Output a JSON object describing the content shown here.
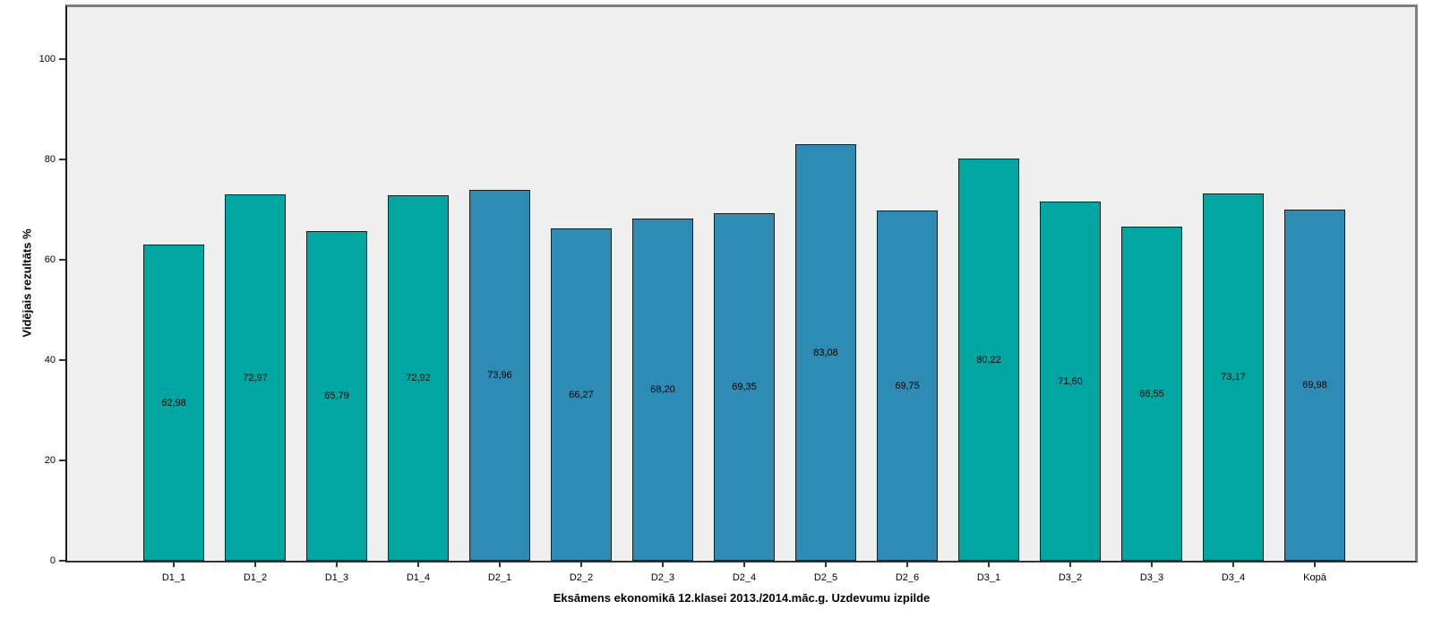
{
  "chart_data": {
    "type": "bar",
    "xlabel": "Eksāmens ekonomikā 12.klasei 2013./2014.māc.g. Uzdevumu izpilde",
    "ylabel": "Vidējais rezultāts %",
    "categories": [
      "D1_1",
      "D1_2",
      "D1_3",
      "D1_4",
      "D2_1",
      "D2_2",
      "D2_3",
      "D2_4",
      "D2_5",
      "D2_6",
      "D3_1",
      "D3_2",
      "D3_3",
      "D3_4",
      "Kopā"
    ],
    "values": [
      62.98,
      72.97,
      65.79,
      72.92,
      73.96,
      66.27,
      68.2,
      69.35,
      83.08,
      69.75,
      80.22,
      71.6,
      66.55,
      73.17,
      69.98
    ],
    "value_labels": [
      "62,98",
      "72,97",
      "65,79",
      "72,92",
      "73,96",
      "66,27",
      "68,20",
      "69,35",
      "83,08",
      "69,75",
      "80,22",
      "71,60",
      "66,55",
      "73,17",
      "69,98"
    ],
    "bar_color_keys": [
      "teal",
      "teal",
      "teal",
      "teal",
      "blue",
      "blue",
      "blue",
      "blue",
      "blue",
      "blue",
      "teal",
      "teal",
      "teal",
      "teal",
      "blue"
    ],
    "colors": {
      "teal": "#00A7A2",
      "blue": "#2E8BB3",
      "plot_bg": "#EFEFEF",
      "frame": "#7F7F7F",
      "axis": "#333333",
      "bar_border": "#1c1c1c"
    },
    "yticks": [
      0,
      20,
      40,
      60,
      80,
      100
    ],
    "ytick_labels": [
      "0",
      "20",
      "40",
      "60",
      "80",
      "100"
    ],
    "ylim": [
      0,
      111
    ],
    "grid": false,
    "legend": "none",
    "value_label_position": "center-of-bar"
  }
}
